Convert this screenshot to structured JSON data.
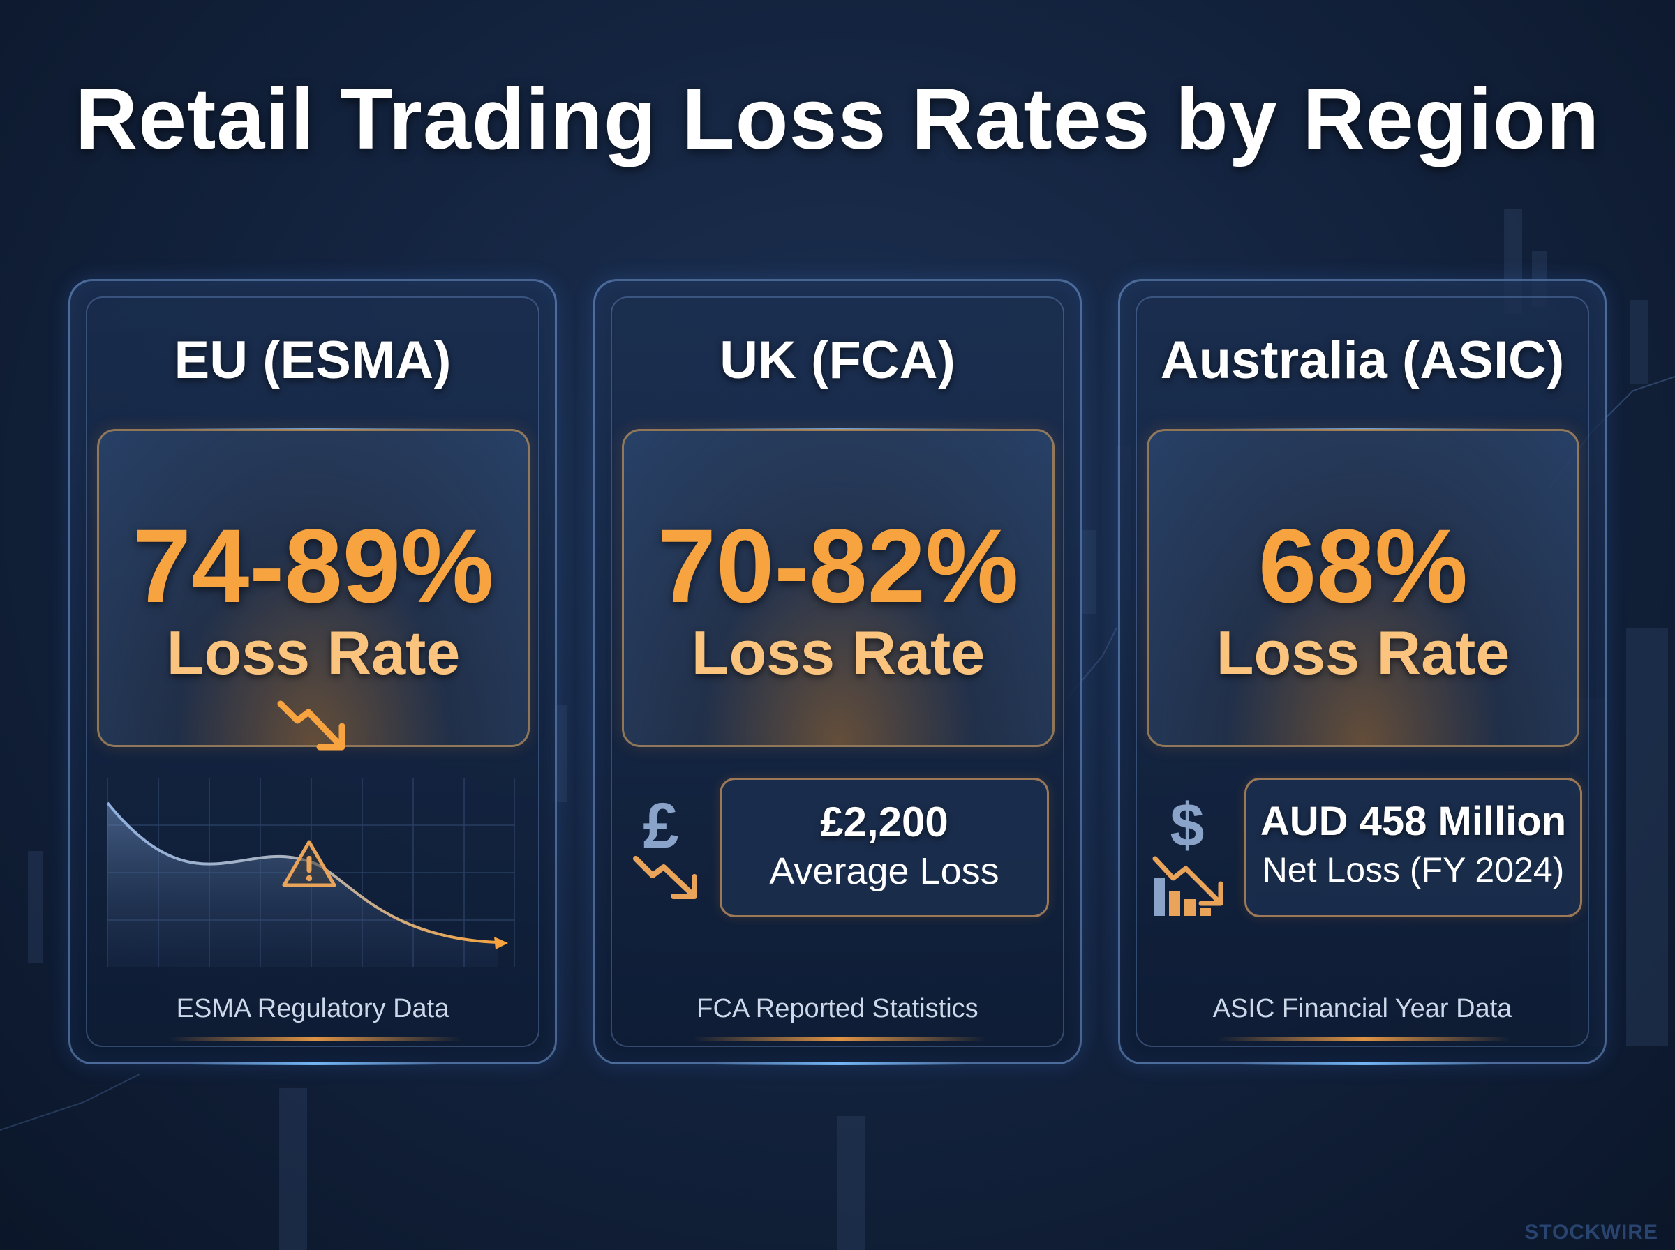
{
  "title": "Retail Trading Loss Rates by Region",
  "watermark": "STOCKWIRE",
  "colors": {
    "accent": "#f7a440",
    "accent_light": "#fbc47e",
    "background": "#142440",
    "card_border": "#78a0dc"
  },
  "cards": [
    {
      "title": "EU (ESMA)",
      "stat_value": "74-89%",
      "stat_label": "Loss Rate",
      "stat_icon": "trend-down-arrow-icon",
      "chart_icon": "warning-triangle-icon",
      "source": "ESMA Regulatory Data"
    },
    {
      "title": "UK (FCA)",
      "stat_value": "70-82%",
      "stat_label": "Loss Rate",
      "info_icon": "pound-down-arrow-icon",
      "info_value": "£2,200",
      "info_label": "Average Loss",
      "source": "FCA Reported Statistics"
    },
    {
      "title": "Australia (ASIC)",
      "stat_value": "68%",
      "stat_label": "Loss Rate",
      "info_icon": "dollar-declining-bars-icon",
      "info_value": "AUD 458 Million",
      "info_label": "Net Loss (FY 2024)",
      "source": "ASIC Financial Year Data"
    }
  ]
}
